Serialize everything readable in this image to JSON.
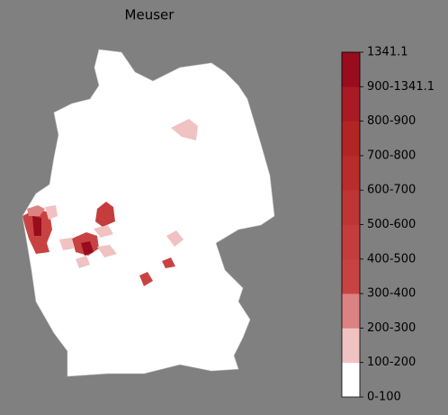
{
  "title": "Meuser",
  "legend": {
    "labels": [
      "0-100",
      "100-200",
      "200-300",
      "300-400",
      "400-500",
      "500-600",
      "600-700",
      "700-800",
      "800-900",
      "900-1341.1",
      "1341.1"
    ],
    "colors": [
      "#ffffff",
      "#f0c2c2",
      "#dc8282",
      "#c94242",
      "#c43c3c",
      "#bf3434",
      "#ba2c2c",
      "#b32424",
      "#a91a24",
      "#980c1e"
    ]
  }
}
